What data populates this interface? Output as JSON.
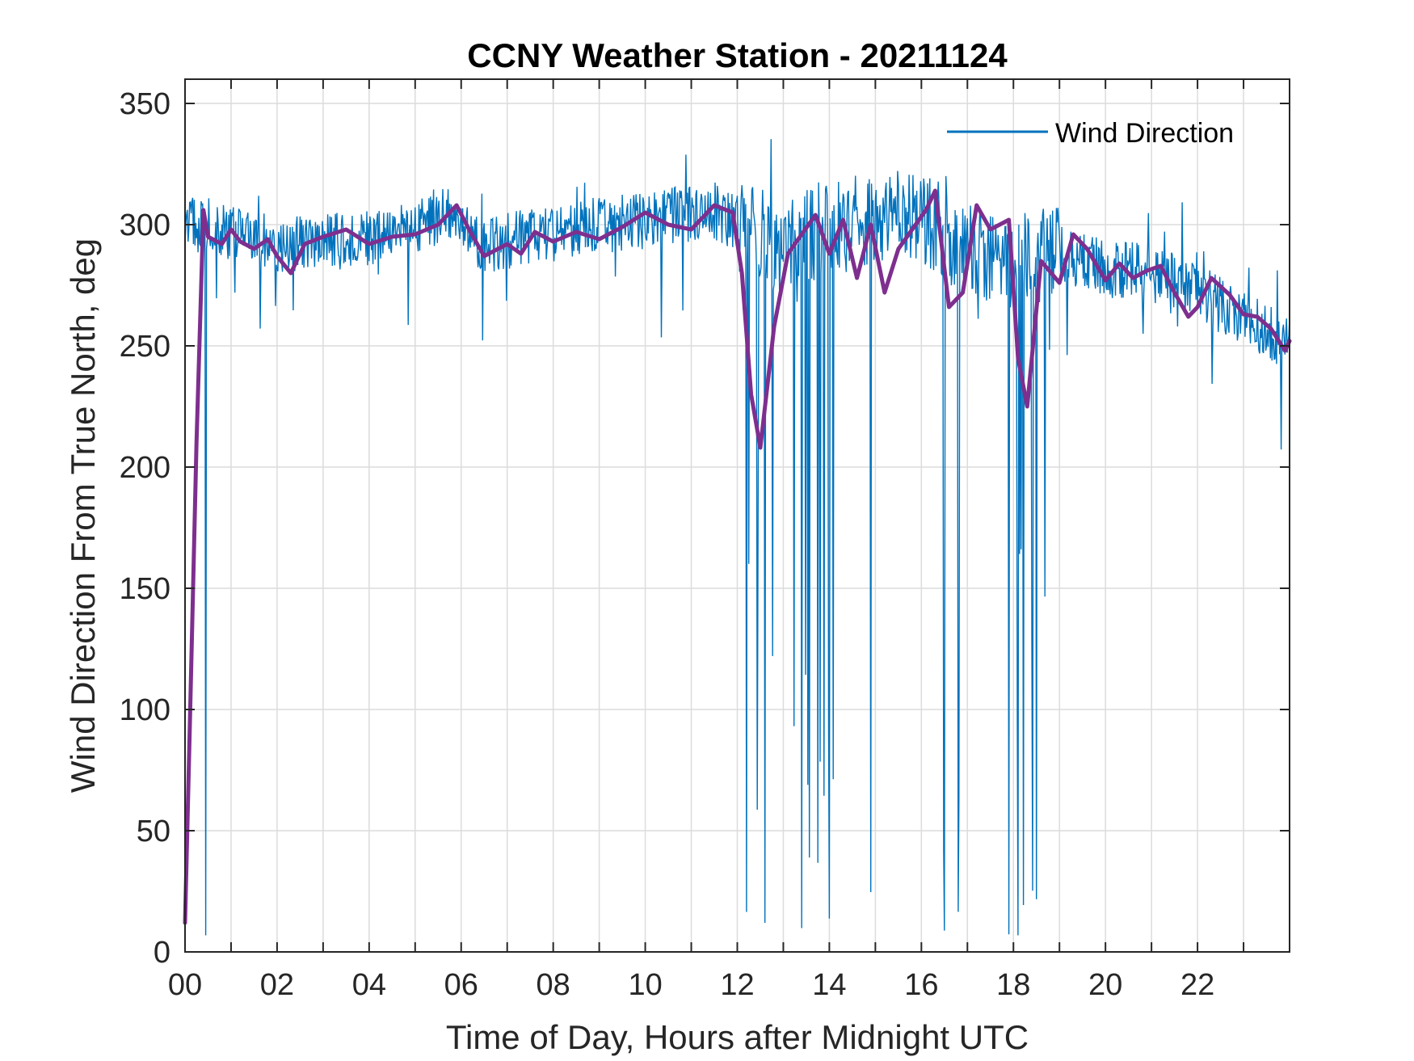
{
  "chart_data": {
    "type": "line",
    "title": "CCNY Weather Station - 20211124",
    "xlabel": "Time of Day, Hours after Midnight UTC",
    "ylabel": "Wind Direction From True North, deg",
    "xlim": [
      0,
      24
    ],
    "ylim": [
      0,
      360
    ],
    "xticks": [
      0,
      2,
      4,
      6,
      8,
      10,
      12,
      14,
      16,
      18,
      20,
      22
    ],
    "xtick_labels": [
      "00",
      "02",
      "04",
      "06",
      "08",
      "10",
      "12",
      "14",
      "16",
      "18",
      "20",
      "22"
    ],
    "yticks": [
      0,
      50,
      100,
      150,
      200,
      250,
      300,
      350
    ],
    "ytick_labels": [
      "0",
      "50",
      "100",
      "150",
      "200",
      "250",
      "300",
      "350"
    ],
    "grid": true,
    "legend": {
      "entries": [
        "Wind Direction"
      ],
      "position": "top-right"
    },
    "colors": {
      "raw": "#0072BD",
      "smoothed": "#7E2F8E"
    },
    "series": [
      {
        "name": "Wind Direction",
        "style": "thin-noisy",
        "note": "raw 1-minute samples; noisy around the baseline with deep drops near 12-13h, 16-17h and 18h",
        "baseline": [
          [
            0,
            300
          ],
          [
            0.35,
            300
          ],
          [
            2,
            292
          ],
          [
            4,
            294
          ],
          [
            5.8,
            305
          ],
          [
            6.4,
            292
          ],
          [
            8,
            296
          ],
          [
            10,
            302
          ],
          [
            11.5,
            306
          ],
          [
            12,
            300
          ],
          [
            13,
            290
          ],
          [
            14,
            300
          ],
          [
            16,
            303
          ],
          [
            17,
            290
          ],
          [
            18,
            285
          ],
          [
            19,
            288
          ],
          [
            20,
            282
          ],
          [
            21,
            280
          ],
          [
            22,
            272
          ],
          [
            23,
            262
          ],
          [
            24,
            250
          ]
        ],
        "deep_drops": [
          [
            0.45,
            0
          ],
          [
            12.2,
            10
          ],
          [
            12.6,
            5
          ],
          [
            13.4,
            0
          ],
          [
            14.0,
            10
          ],
          [
            14.9,
            15
          ],
          [
            16.5,
            5
          ],
          [
            16.8,
            10
          ],
          [
            17.9,
            5
          ],
          [
            18.1,
            3
          ],
          [
            18.5,
            20
          ]
        ]
      },
      {
        "name": "Smoothed Wind Direction",
        "style": "thick",
        "in_legend": false,
        "x": [
          0,
          0.1,
          0.25,
          0.4,
          0.5,
          0.8,
          1.0,
          1.2,
          1.5,
          1.8,
          2.0,
          2.3,
          2.6,
          3.0,
          3.5,
          4.0,
          4.5,
          5.0,
          5.5,
          5.9,
          6.2,
          6.5,
          7.0,
          7.3,
          7.6,
          8.0,
          8.5,
          9.0,
          9.5,
          10.0,
          10.5,
          11.0,
          11.5,
          11.9,
          12.1,
          12.3,
          12.5,
          12.8,
          13.1,
          13.4,
          13.7,
          14.0,
          14.3,
          14.6,
          14.9,
          15.2,
          15.5,
          15.8,
          16.1,
          16.3,
          16.6,
          16.9,
          17.2,
          17.5,
          17.9,
          18.1,
          18.3,
          18.6,
          19.0,
          19.3,
          19.6,
          20.0,
          20.3,
          20.6,
          20.9,
          21.2,
          21.5,
          21.8,
          22.0,
          22.3,
          22.7,
          23.0,
          23.3,
          23.6,
          23.9,
          24.0
        ],
        "y": [
          12,
          90,
          210,
          306,
          295,
          292,
          298,
          293,
          290,
          294,
          287,
          280,
          292,
          295,
          298,
          292,
          295,
          296,
          300,
          308,
          297,
          287,
          292,
          288,
          297,
          293,
          297,
          294,
          299,
          305,
          300,
          298,
          308,
          305,
          280,
          230,
          208,
          258,
          288,
          296,
          304,
          288,
          302,
          278,
          300,
          272,
          290,
          298,
          306,
          314,
          266,
          272,
          308,
          298,
          302,
          245,
          225,
          285,
          276,
          296,
          290,
          277,
          284,
          278,
          281,
          283,
          272,
          262,
          266,
          278,
          271,
          263,
          262,
          257,
          248,
          252
        ]
      }
    ]
  }
}
